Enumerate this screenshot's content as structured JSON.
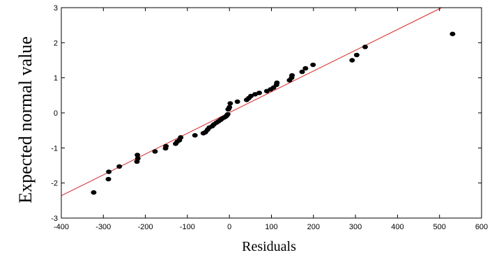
{
  "chart_data": {
    "type": "scatter",
    "title": "",
    "xlabel": "Residuals",
    "ylabel": "Expected normal value",
    "xlim": [
      -400,
      600
    ],
    "ylim": [
      -3,
      3
    ],
    "xticks": [
      -400,
      -300,
      -200,
      -100,
      0,
      100,
      200,
      300,
      400,
      500,
      600
    ],
    "yticks": [
      -3,
      -2,
      -1,
      0,
      1,
      2,
      3
    ],
    "xtick_labels": [
      "-400",
      "-300",
      "-200",
      "-100",
      "0",
      "100",
      "200",
      "300",
      "400",
      "500",
      "600"
    ],
    "ytick_labels": [
      "-3",
      "-2",
      "-1",
      "0",
      "1",
      "2",
      "3"
    ],
    "grid": false,
    "reference_line": {
      "x": [
        -400,
        505
      ],
      "y": [
        -2.36,
        3.0
      ],
      "color": "#d62728"
    },
    "point_color": "#000000",
    "points": {
      "x": [
        -323,
        -288,
        -287,
        -262,
        -220,
        -219,
        -218,
        -177,
        -152,
        -151,
        -128,
        -124,
        -119,
        -116,
        -82,
        -62,
        -57,
        -52,
        -48,
        -41,
        -37,
        -31,
        -26,
        -21,
        -17,
        -12,
        -8,
        -6,
        -4,
        -3,
        -2,
        0,
        2,
        19,
        41,
        46,
        51,
        61,
        71,
        89,
        98,
        105,
        112,
        113,
        143,
        148,
        149,
        173,
        181,
        199,
        292,
        303,
        323,
        531
      ],
      "y": [
        -2.27,
        -1.89,
        -1.68,
        -1.53,
        -1.39,
        -1.2,
        -1.3,
        -1.1,
        -1.01,
        -0.95,
        -0.88,
        -0.82,
        -0.78,
        -0.7,
        -0.64,
        -0.58,
        -0.55,
        -0.48,
        -0.42,
        -0.38,
        -0.33,
        -0.28,
        -0.24,
        -0.2,
        -0.16,
        -0.13,
        -0.1,
        -0.07,
        -0.04,
        0.1,
        0.11,
        0.16,
        0.27,
        0.32,
        0.37,
        0.42,
        0.48,
        0.53,
        0.57,
        0.62,
        0.67,
        0.72,
        0.8,
        0.86,
        0.93,
        1.0,
        1.07,
        1.17,
        1.27,
        1.37,
        1.5,
        1.65,
        1.88,
        2.25
      ]
    }
  }
}
